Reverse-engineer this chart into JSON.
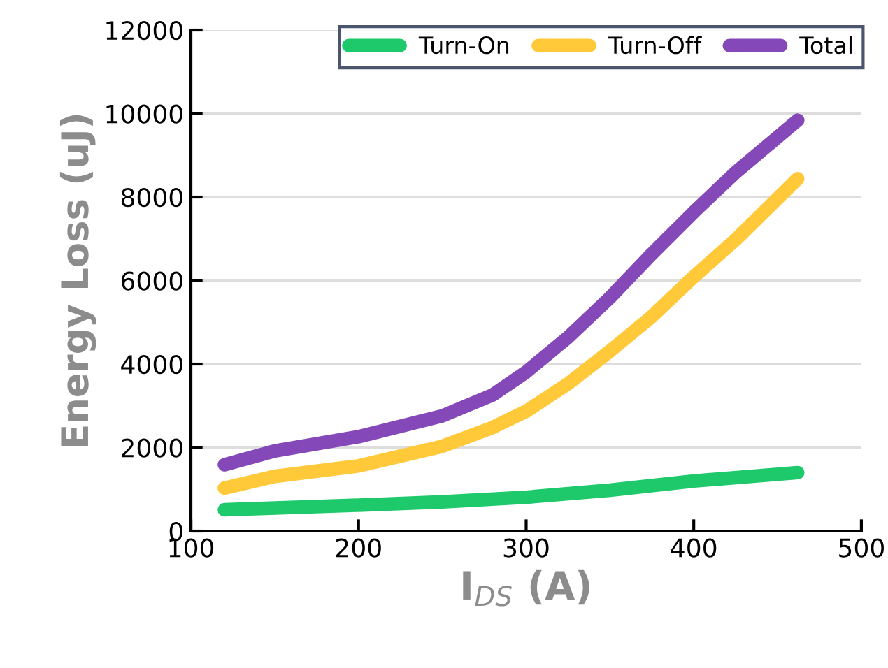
{
  "chart_data": {
    "type": "line",
    "xlabel": "I$_{DS}$ (A)",
    "ylabel": "Energy Loss (uJ)",
    "xlim": [
      100,
      500
    ],
    "xticks": [
      100,
      200,
      300,
      400,
      500
    ],
    "ylim": [
      0,
      12000
    ],
    "yticks": [
      0,
      2000,
      4000,
      6000,
      8000,
      10000,
      12000
    ],
    "grid": "y",
    "legend": "top right",
    "marker": "none",
    "line_style": "solid",
    "series": [
      {
        "name": "Turn-On",
        "color": "#1ec96b",
        "x": [
          120,
          200,
          250,
          300,
          350,
          400,
          462
        ],
        "values": [
          510,
          620,
          700,
          810,
          980,
          1200,
          1400
        ]
      },
      {
        "name": "Turn-Off",
        "color": "#ffc93a",
        "x": [
          120,
          150,
          200,
          250,
          280,
          300,
          325,
          350,
          375,
          400,
          425,
          462
        ],
        "values": [
          1030,
          1310,
          1560,
          2030,
          2480,
          2870,
          3530,
          4310,
          5140,
          6090,
          6980,
          8440
        ]
      },
      {
        "name": "Total",
        "color": "#8448b8",
        "x": [
          120,
          150,
          200,
          250,
          280,
          300,
          325,
          350,
          375,
          400,
          425,
          462
        ],
        "values": [
          1590,
          1920,
          2260,
          2760,
          3260,
          3810,
          4640,
          5590,
          6640,
          7640,
          8590,
          9840
        ]
      }
    ]
  }
}
